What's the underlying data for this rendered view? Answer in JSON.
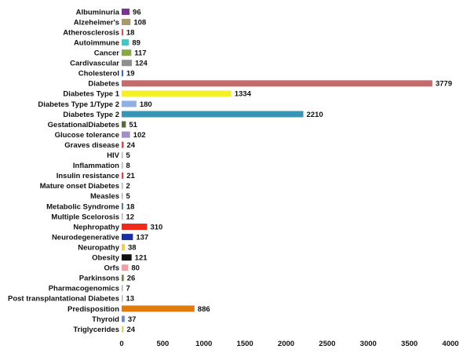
{
  "chart_data": {
    "type": "bar",
    "orientation": "horizontal",
    "title": "",
    "xlabel": "",
    "ylabel": "",
    "xlim": [
      0,
      4000
    ],
    "x_ticks": [
      "0",
      "500",
      "1000",
      "1500",
      "2000",
      "2500",
      "3000",
      "3500",
      "4000"
    ],
    "grid": false,
    "legend": "none",
    "categories": [
      "Albuminuria",
      "Alzeheimer's",
      "Atherosclerosis",
      "Autoimmune",
      "Cancer",
      "Cardivascular",
      "Cholesterol",
      "Diabetes",
      "Diabetes Type 1",
      "Diabetes Type 1/Type 2",
      "Diabetes Type 2",
      "GestationalDiabetes",
      "Glucose tolerance",
      "Graves disease",
      "HIV",
      "Inflammation",
      "Insulin resistance",
      "Mature onset Diabetes",
      "Measles",
      "Metabolic Syndrome",
      "Multiple Scelorosis",
      "Nephropathy",
      "Neurodegenerative",
      "Neuropathy",
      "Obesity",
      "Orfs",
      "Parkinsons",
      "Pharmacogenomics",
      "Post transplantational Diabetes",
      "Predisposition",
      "Thyroid",
      "Triglycerides"
    ],
    "values": [
      96,
      108,
      18,
      89,
      117,
      124,
      19,
      3779,
      1334,
      180,
      2210,
      51,
      102,
      24,
      5,
      8,
      21,
      2,
      5,
      18,
      12,
      310,
      137,
      38,
      121,
      80,
      26,
      7,
      13,
      886,
      37,
      24
    ],
    "value_labels": [
      "96",
      "108",
      "18",
      "89",
      "117",
      "124",
      "19",
      "3779",
      "1334",
      "180",
      "2210",
      "51",
      "102",
      "24",
      "5",
      "8",
      "21",
      "2",
      "5",
      "18",
      "12",
      "310",
      "137",
      "38",
      "121",
      "80",
      "26",
      "7",
      "13",
      "886",
      "37",
      "24"
    ],
    "colors": [
      "#7b3294",
      "#a89a6a",
      "#e0443a",
      "#40c8c8",
      "#8aa84a",
      "#8f8f8f",
      "#2a6fc0",
      "#c66b6b",
      "#f4f02a",
      "#8fb0e6",
      "#3a95b5",
      "#5a6a3a",
      "#a090c8",
      "#e0443a",
      "#b0b0b0",
      "#b0b0b0",
      "#e0443a",
      "#b0b0b0",
      "#b0b0b0",
      "#3a7aa0",
      "#b0b0b0",
      "#f02a1a",
      "#1a2ea0",
      "#f0cc50",
      "#111111",
      "#f0a0a0",
      "#6a8a3a",
      "#b0b0b0",
      "#b0b0b0",
      "#e07b10",
      "#6a8acf",
      "#d8d860"
    ]
  }
}
